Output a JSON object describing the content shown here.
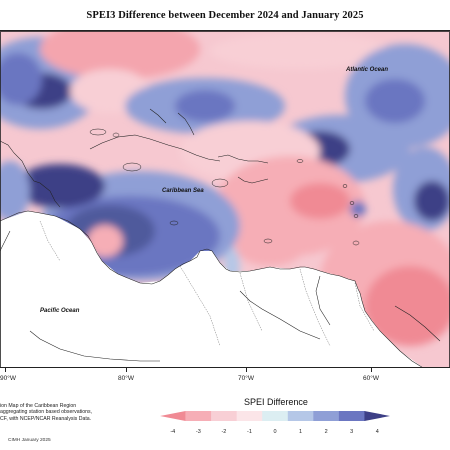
{
  "title": "SPEI3 Difference between December 2024 and January 2025",
  "ocean_labels": {
    "atlantic": "Atlantic Ocean",
    "caribbean": "Caribbean Sea",
    "pacific": "Pacific Ocean"
  },
  "longitude_labels": [
    "90°W",
    "80°W",
    "70°W",
    "60°W"
  ],
  "notes": {
    "line1": "ion Map of the Caribbean Region",
    "line2": "aggregating station based observations,",
    "line3": "CF, with NCEP/NCAR Reanalysis Data."
  },
  "credit": "CIMH January 2025",
  "legend": {
    "title": "SPEI Difference",
    "ticks": [
      "-4",
      "-3",
      "-2",
      "-1",
      "0",
      "1",
      "2",
      "3",
      "4"
    ],
    "colors": [
      "#f08a94",
      "#f6aeb6",
      "#f8cfd5",
      "#fbe5e8",
      "#dceef2",
      "#b5c7e7",
      "#8f9fd6",
      "#6b76c1",
      "#3d3f86"
    ]
  },
  "map_colors": {
    "land_fill": "#ffffff",
    "coastline": "#222222"
  }
}
